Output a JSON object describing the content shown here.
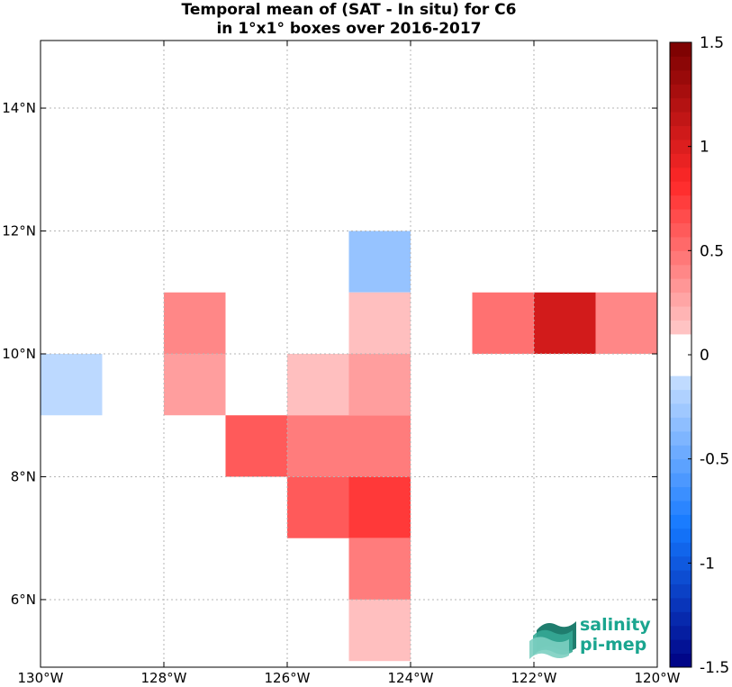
{
  "title_line1": "Temporal mean of (SAT - In situ) for C6",
  "title_line2": "in 1°x1° boxes over 2016-2017",
  "logo": {
    "line1": "salinity",
    "line2": "pi-mep",
    "color": "#1aa58f"
  },
  "map": {
    "lon_range": [
      -130,
      -120
    ],
    "lat_range": [
      4.9,
      15.1
    ],
    "x_ticks": [
      {
        "value": -130,
        "label": "130°W"
      },
      {
        "value": -128,
        "label": "128°W"
      },
      {
        "value": -126,
        "label": "126°W"
      },
      {
        "value": -124,
        "label": "124°W"
      },
      {
        "value": -122,
        "label": "122°W"
      },
      {
        "value": -120,
        "label": "120°W"
      }
    ],
    "y_ticks": [
      {
        "value": 6,
        "label": "6°N"
      },
      {
        "value": 8,
        "label": "8°N"
      },
      {
        "value": 10,
        "label": "10°N"
      },
      {
        "value": 12,
        "label": "12°N"
      },
      {
        "value": 14,
        "label": "14°N"
      }
    ],
    "grid": true,
    "cells": [
      {
        "lon": -130,
        "lat": 9,
        "value": -0.15
      },
      {
        "lon": -128,
        "lat": 10,
        "value": 0.4
      },
      {
        "lon": -128,
        "lat": 9,
        "value": 0.3
      },
      {
        "lon": -127,
        "lat": 8,
        "value": 0.6
      },
      {
        "lon": -126,
        "lat": 9,
        "value": 0.15
      },
      {
        "lon": -126,
        "lat": 8,
        "value": 0.45
      },
      {
        "lon": -126,
        "lat": 7,
        "value": 0.6
      },
      {
        "lon": -125,
        "lat": 11,
        "value": -0.3
      },
      {
        "lon": -125,
        "lat": 10,
        "value": 0.15
      },
      {
        "lon": -125,
        "lat": 9,
        "value": 0.3
      },
      {
        "lon": -125,
        "lat": 8,
        "value": 0.45
      },
      {
        "lon": -125,
        "lat": 7,
        "value": 0.75
      },
      {
        "lon": -125,
        "lat": 6,
        "value": 0.45
      },
      {
        "lon": -125,
        "lat": 5,
        "value": 0.15
      },
      {
        "lon": -123,
        "lat": 10,
        "value": 0.5
      },
      {
        "lon": -122,
        "lat": 10,
        "value": 1.05
      },
      {
        "lon": -121,
        "lat": 10,
        "value": 0.4
      }
    ]
  },
  "colorbar": {
    "range": [
      -1.5,
      1.5
    ],
    "ticks": [
      {
        "value": 1.5,
        "label": "1.5"
      },
      {
        "value": 1,
        "label": "1"
      },
      {
        "value": 0.5,
        "label": "0.5"
      },
      {
        "value": 0,
        "label": "0"
      },
      {
        "value": -0.5,
        "label": "-0.5"
      },
      {
        "value": -1,
        "label": "-1"
      },
      {
        "value": -1.5,
        "label": "-1.5"
      }
    ]
  }
}
